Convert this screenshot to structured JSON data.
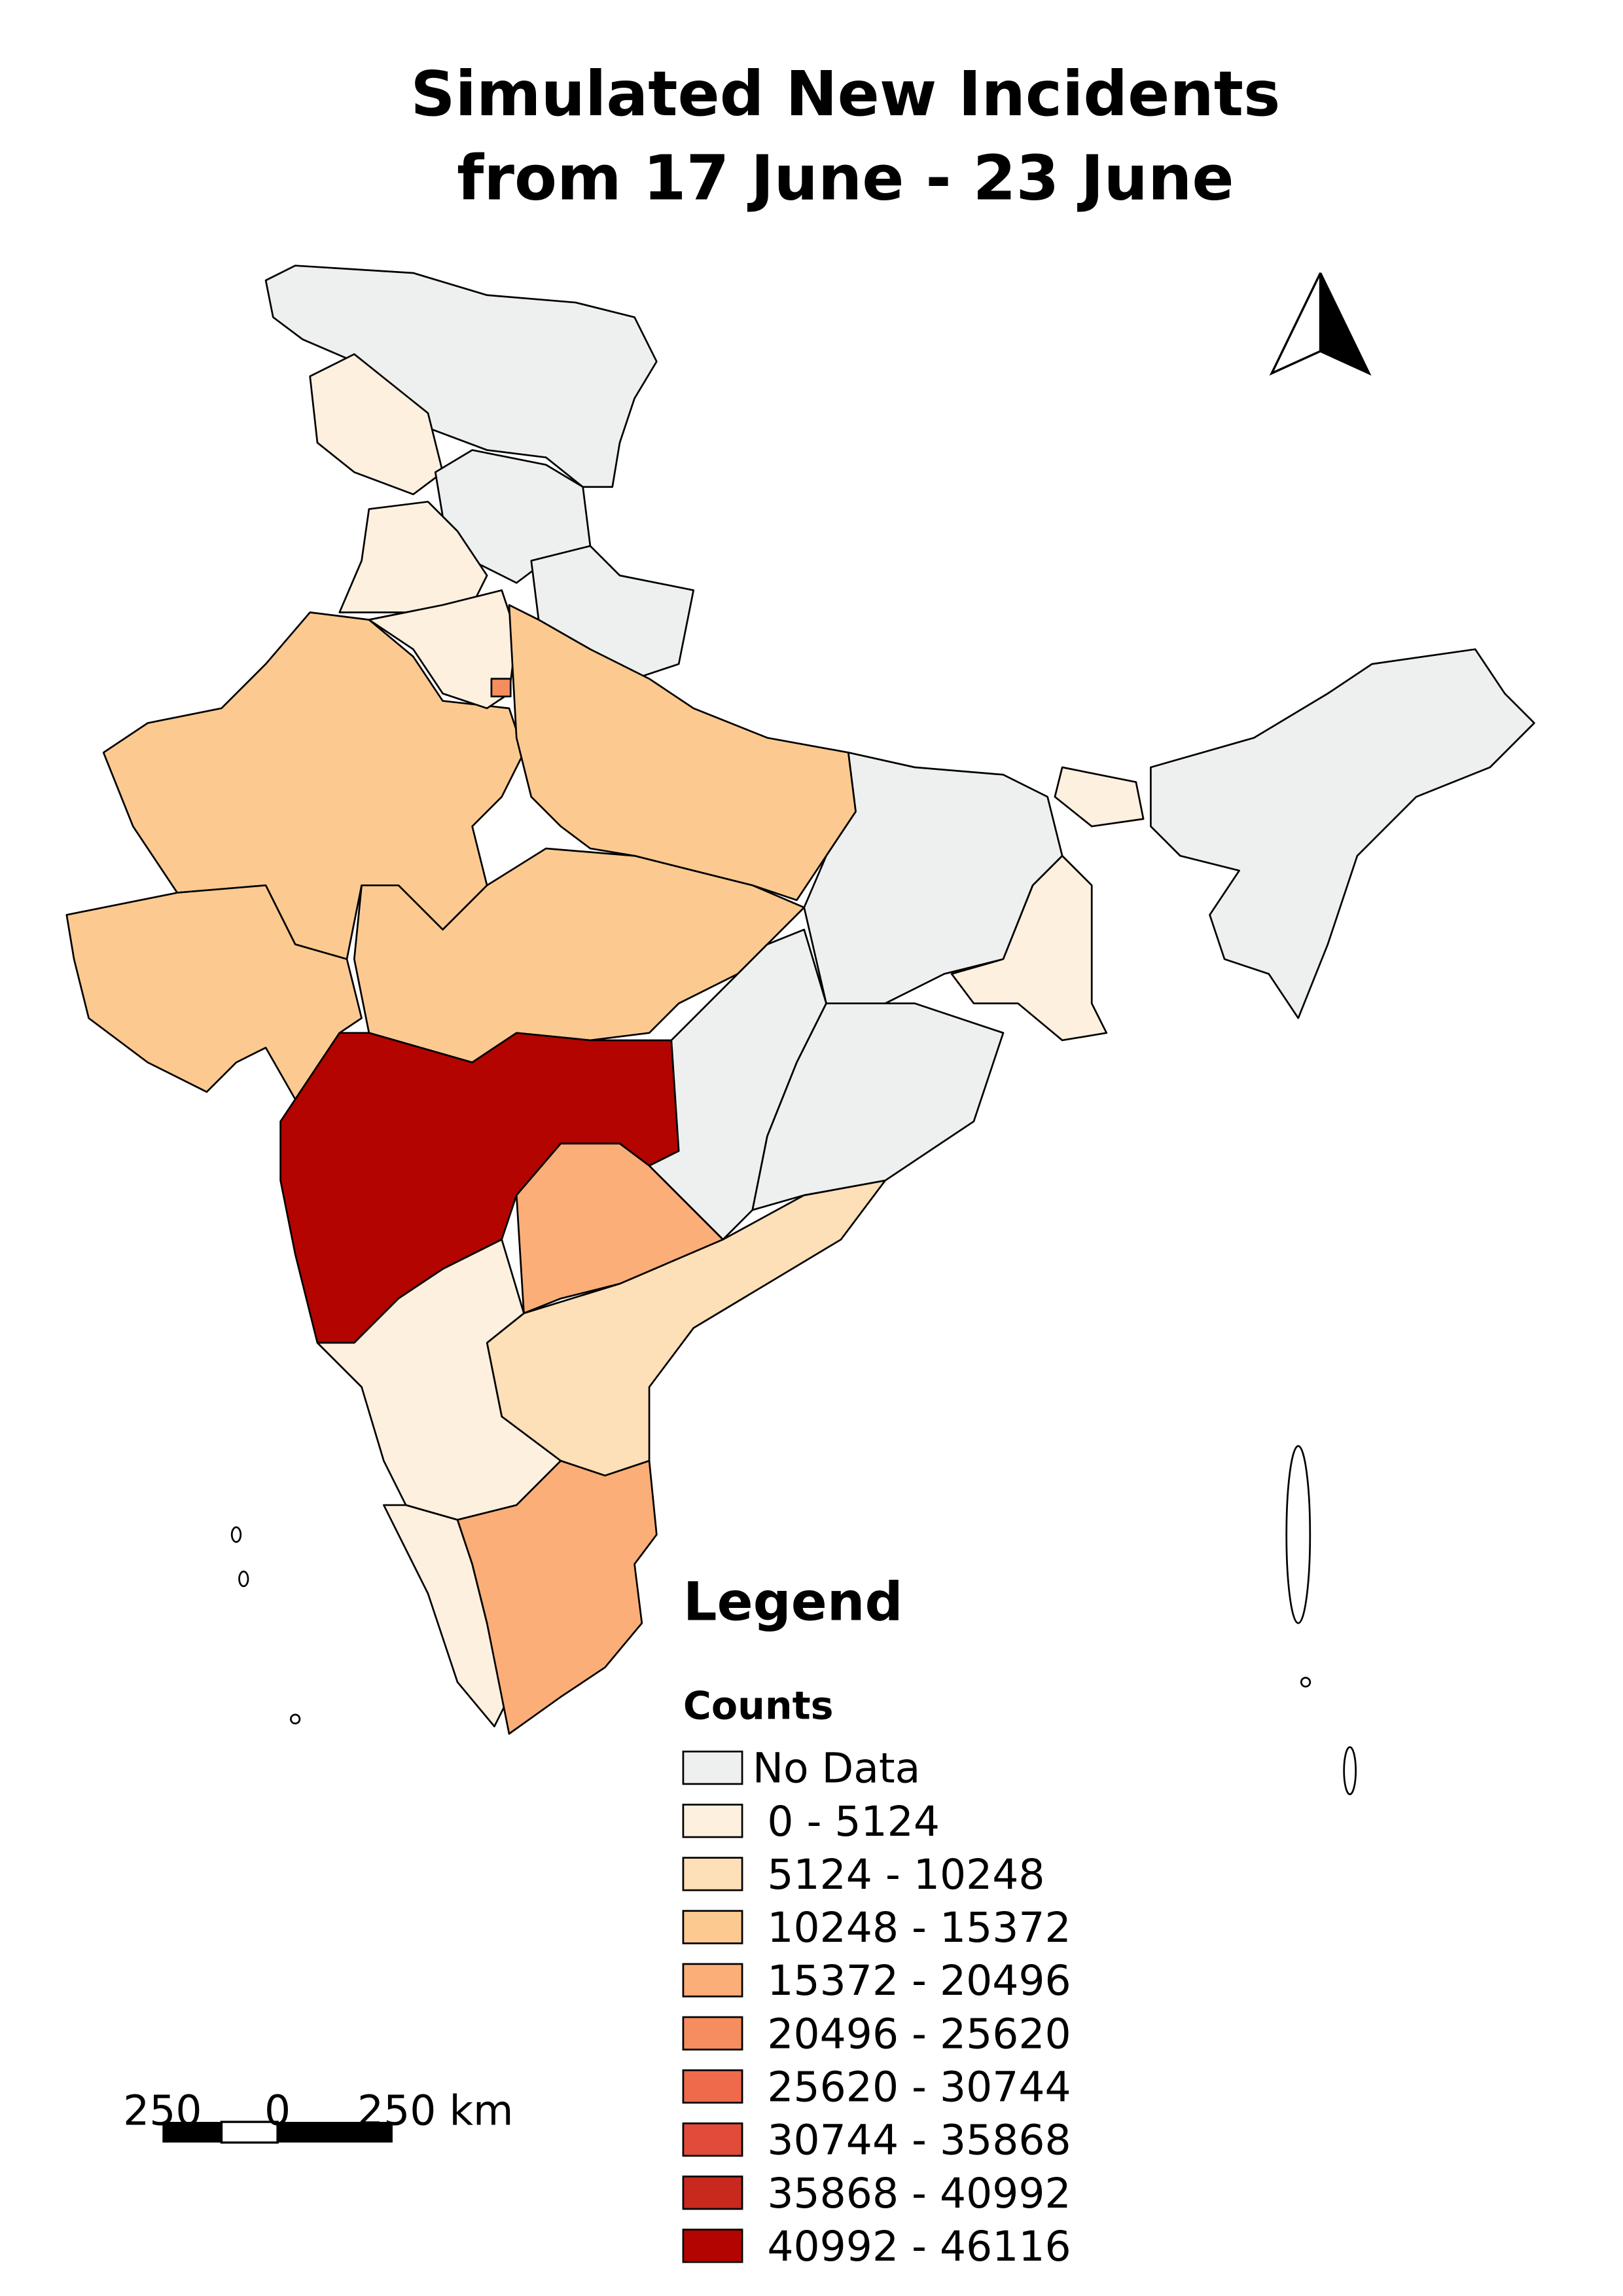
{
  "title": [
    "Simulated New Incidents",
    "from 17 June - 23 June"
  ],
  "legend": {
    "title": "Legend",
    "subtitle": "Counts",
    "items": [
      {
        "label": "No Data",
        "color": "#eef0ef"
      },
      {
        "label": "0 - 5124",
        "color": "#fef0df"
      },
      {
        "label": "5124 - 10248",
        "color": "#fddfb8"
      },
      {
        "label": "10248 - 15372",
        "color": "#fcca90"
      },
      {
        "label": "15372 - 20496",
        "color": "#fbae78"
      },
      {
        "label": "20496 - 25620",
        "color": "#f68d5e"
      },
      {
        "label": "25620 - 30744",
        "color": "#ee6a4a"
      },
      {
        "label": "30744 - 35868",
        "color": "#e04b3a"
      },
      {
        "label": "35868 - 40992",
        "color": "#c8281e"
      },
      {
        "label": "40992 - 46116",
        "color": "#b30400"
      }
    ]
  },
  "scale_bar": {
    "labels": [
      "250",
      "0",
      "250 km"
    ]
  }
}
